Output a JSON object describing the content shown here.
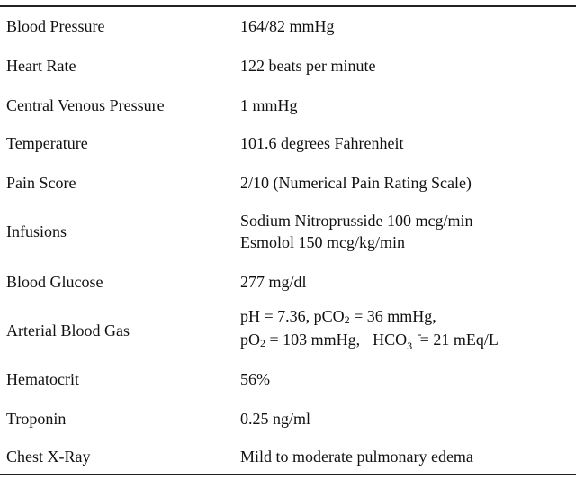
{
  "rows": [
    {
      "label": "Blood Pressure",
      "value": "164/82 mmHg"
    },
    {
      "label": "Heart Rate",
      "value": "122 beats per minute"
    },
    {
      "label": "Central Venous Pressure",
      "value": "1 mmHg"
    },
    {
      "label": "Temperature",
      "value": "101.6 degrees Fahrenheit"
    },
    {
      "label": "Pain Score",
      "value": "2/10 (Numerical Pain Rating Scale)"
    },
    {
      "label": "Infusions",
      "value_line1": "Sodium Nitroprusside 100 mcg/min",
      "value_line2": "Esmolol 150 mcg/kg/min"
    },
    {
      "label": "Blood Glucose",
      "value": "277 mg/dl"
    },
    {
      "label": "Arterial Blood Gas",
      "abg": {
        "ph": "pH = 7.36, pCO",
        "sub2": "2",
        "pco2_val": " = 36 mmHg,",
        "po": "pO",
        "po2_val": " = 103 mmHg,",
        "hco": "HCO",
        "hco_sub": "3",
        "hco_sup": "-",
        "hco_val": " = 21 mEq/L"
      }
    },
    {
      "label": "Hematocrit",
      "value": "56%"
    },
    {
      "label": "Troponin",
      "value": "0.25 ng/ml"
    },
    {
      "label": "Chest X-Ray",
      "value": "Mild to moderate pulmonary edema"
    }
  ]
}
